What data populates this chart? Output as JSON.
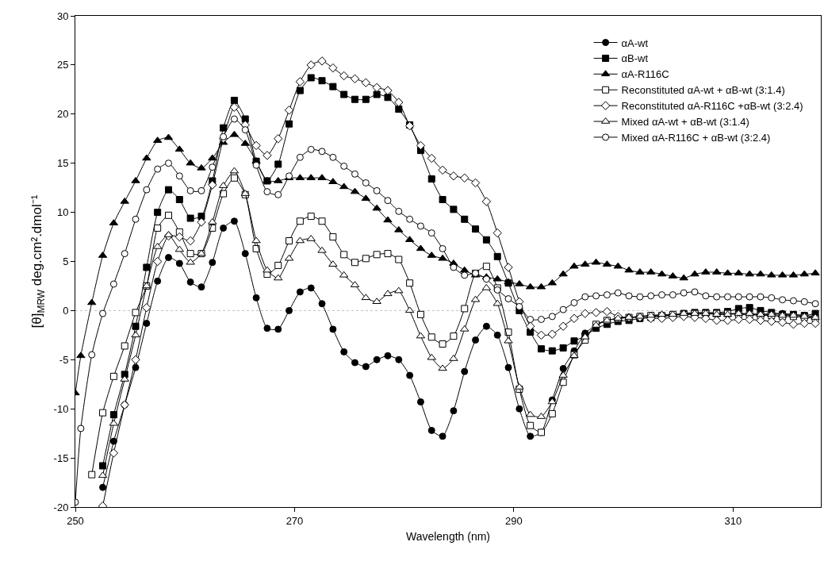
{
  "chart_data": {
    "type": "line",
    "xlabel": "Wavelength (nm)",
    "ylabel": "[θ]$_{MRW}$ deg.cm².dmol⁻¹",
    "x": [
      251.5,
      252.5,
      253.5,
      254.5,
      255.5,
      256.5,
      257.5,
      258.5,
      259.5,
      260.5,
      261.5,
      262.5,
      263.5,
      264.5,
      265.5,
      266.5,
      267.5,
      268.5,
      269.5,
      270.5,
      271.5,
      272.5,
      273.5,
      274.5,
      275.5,
      276.5,
      277.5,
      278.5,
      279.5,
      280.5,
      281.5,
      282.5,
      283.5,
      284.5,
      285.5,
      286.5,
      287.5,
      288.5,
      289.5,
      290.5,
      291.5,
      292.5,
      293.5,
      294.5,
      295.5,
      296.5,
      297.5,
      298.5,
      299.5,
      300.5,
      301.5,
      302.5,
      303.5,
      304.5,
      305.5,
      306.5,
      307.5,
      308.5,
      309.5,
      310.5,
      311.5,
      312.5,
      313.5,
      314.5,
      315.5,
      316.5,
      317.5
    ],
    "series": [
      {
        "name": "αA-wt",
        "color": "#000000",
        "marker": "circle",
        "values": [
          null,
          -18.0,
          -13.3,
          -9.6,
          -5.8,
          -1.3,
          3.0,
          5.4,
          4.8,
          2.9,
          2.4,
          4.9,
          8.4,
          9.1,
          5.8,
          1.3,
          -1.8,
          -1.9,
          0.0,
          1.9,
          2.3,
          0.7,
          -1.9,
          -4.2,
          -5.3,
          -5.7,
          -5.0,
          -4.6,
          -5.0,
          -6.6,
          -9.3,
          -12.2,
          -12.8,
          -10.2,
          -6.2,
          -3.0,
          -1.6,
          -2.5,
          -5.8,
          -10.0,
          -12.8,
          -12.4,
          -9.1,
          -5.9,
          -4.1,
          -2.3,
          -1.5,
          -1.0,
          -0.8,
          -0.7,
          -0.6,
          -0.6,
          -0.5,
          -0.5,
          -0.4,
          -0.4,
          -0.3,
          -0.3,
          -0.3,
          -0.3,
          -0.4,
          -0.4,
          -0.3,
          -0.3,
          -0.4,
          -0.5,
          -0.6
        ]
      },
      {
        "name": "αB-wt",
        "color": "#000000",
        "marker": "square",
        "values": [
          null,
          -15.8,
          -10.6,
          -6.5,
          -1.6,
          4.4,
          10.0,
          12.3,
          11.3,
          9.4,
          9.6,
          13.2,
          18.6,
          21.4,
          19.5,
          15.2,
          13.2,
          14.9,
          19.0,
          22.4,
          23.7,
          23.4,
          22.8,
          22.0,
          21.5,
          21.5,
          22.0,
          21.7,
          20.5,
          18.9,
          16.3,
          13.4,
          11.3,
          10.3,
          9.3,
          8.3,
          7.2,
          5.5,
          2.8,
          0.0,
          -2.2,
          -3.9,
          -4.1,
          -3.8,
          -3.1,
          -2.6,
          -1.8,
          -1.4,
          -1.1,
          -1.0,
          -0.8,
          -0.7,
          -0.6,
          -0.5,
          -0.3,
          -0.2,
          -0.2,
          -0.2,
          -0.1,
          0.2,
          0.3,
          0.0,
          -0.2,
          -0.4,
          -0.4,
          -0.5,
          -0.3
        ]
      },
      {
        "name": "αA-R116C",
        "color": "#000000",
        "marker": "triangle",
        "x": [
          250,
          250.5,
          251.5,
          252.5,
          253.5,
          254.5,
          255.5,
          256.5,
          257.5,
          258.5,
          259.5,
          260.5,
          261.5,
          262.5,
          263.5,
          264.5,
          265.5,
          266.5,
          267.5,
          268.5,
          269.5,
          270.5,
          271.5,
          272.5,
          273.5,
          274.5,
          275.5,
          276.5,
          277.5,
          278.5,
          279.5,
          280.5,
          281.5,
          282.5,
          283.5,
          284.5,
          285.5,
          286.5,
          287.5,
          288.5,
          289.5,
          290.5,
          291.5,
          292.5,
          293.5,
          294.5,
          295.5,
          296.5,
          297.5,
          298.5,
          299.5,
          300.5,
          301.5,
          302.5,
          303.5,
          304.5,
          305.5,
          306.5,
          307.5,
          308.5,
          309.5,
          310.5,
          311.5,
          312.5,
          313.5,
          314.5,
          315.5,
          316.5,
          317.5
        ],
        "values": [
          -8.4,
          -4.6,
          0.8,
          5.6,
          8.9,
          11.1,
          13.2,
          15.5,
          17.3,
          17.6,
          16.4,
          15.0,
          14.5,
          15.5,
          17.1,
          17.9,
          17.0,
          15.2,
          13.2,
          13.2,
          13.5,
          13.5,
          13.5,
          13.5,
          13.1,
          12.6,
          12.1,
          11.4,
          10.4,
          9.2,
          8.2,
          7.2,
          6.3,
          5.6,
          5.3,
          4.8,
          4.1,
          3.6,
          3.4,
          3.2,
          2.9,
          2.7,
          2.4,
          2.4,
          2.8,
          3.7,
          4.5,
          4.7,
          4.9,
          4.7,
          4.5,
          4.1,
          3.9,
          3.9,
          3.7,
          3.5,
          3.3,
          3.7,
          3.9,
          3.9,
          3.8,
          3.8,
          3.7,
          3.7,
          3.6,
          3.6,
          3.6,
          3.7,
          3.8
        ]
      },
      {
        "name": "Reconstituted αA-wt + αB-wt (3:1.4)",
        "color": "#000000",
        "marker": "square",
        "values": [
          -16.7,
          -10.4,
          -6.7,
          -3.6,
          -0.2,
          2.5,
          8.4,
          9.7,
          8.0,
          5.8,
          5.8,
          8.4,
          11.9,
          13.5,
          11.8,
          6.3,
          3.7,
          4.6,
          7.1,
          9.1,
          9.6,
          9.1,
          7.5,
          5.7,
          4.9,
          5.3,
          5.7,
          5.8,
          5.2,
          2.8,
          -0.4,
          -2.7,
          -3.4,
          -2.6,
          0.2,
          3.8,
          4.5,
          2.3,
          -2.2,
          -8.0,
          -11.7,
          -12.4,
          -10.5,
          -7.3,
          -4.5,
          -3.0,
          -1.4,
          -1.0,
          -0.8,
          -0.7,
          -0.6,
          -0.5,
          -0.5,
          -0.4,
          -0.4,
          -0.3,
          -0.3,
          -0.3,
          -0.3,
          -0.4,
          -0.4,
          -0.5,
          -0.5,
          -0.6,
          -0.6,
          -0.7,
          -0.8
        ]
      },
      {
        "name": "Reconstituted αA-R116C +αB-wt (3:2.4)",
        "color": "#000000",
        "marker": "diamond",
        "values": [
          null,
          -19.9,
          -14.5,
          -9.6,
          -5.0,
          0.3,
          5.0,
          7.6,
          7.5,
          7.1,
          9.0,
          12.8,
          17.5,
          20.7,
          18.9,
          16.8,
          15.8,
          17.5,
          20.4,
          23.3,
          25.0,
          25.4,
          24.7,
          23.9,
          23.6,
          23.2,
          22.7,
          22.4,
          21.2,
          18.8,
          16.8,
          15.5,
          14.3,
          13.7,
          13.5,
          13.0,
          11.1,
          7.9,
          4.4,
          0.9,
          -1.6,
          -2.5,
          -2.4,
          -1.6,
          -0.8,
          -0.3,
          -0.2,
          -0.1,
          -0.6,
          -0.7,
          -0.7,
          -0.8,
          -0.8,
          -0.7,
          -0.6,
          -0.7,
          -0.8,
          -1.0,
          -1.0,
          -0.9,
          -0.9,
          -1.0,
          -1.1,
          -1.2,
          -1.4,
          -1.3,
          -1.3
        ]
      },
      {
        "name": "Mixed αA-wt + αB-wt (3:1.4)",
        "color": "#000000",
        "marker": "triangle",
        "values": [
          null,
          -16.8,
          -11.5,
          -7.0,
          -2.5,
          2.5,
          6.5,
          7.7,
          6.2,
          4.9,
          5.8,
          9.0,
          12.7,
          14.2,
          11.9,
          7.1,
          4.1,
          3.3,
          5.3,
          7.1,
          7.3,
          6.1,
          4.7,
          3.6,
          2.6,
          1.3,
          0.9,
          1.7,
          2.0,
          0.0,
          -2.6,
          -4.8,
          -5.9,
          -4.9,
          -1.9,
          1.1,
          2.3,
          0.7,
          -3.1,
          -7.8,
          -10.6,
          -10.8,
          -9.3,
          -6.6,
          -4.6,
          -2.7,
          -1.5,
          -1.0,
          -0.8,
          -0.7,
          -0.6,
          -0.5,
          -0.4,
          -0.4,
          -0.3,
          -0.3,
          -0.3,
          -0.4,
          -0.4,
          -0.3,
          -0.3,
          -0.4,
          -0.4,
          -0.5,
          -0.5,
          -0.6,
          -0.7
        ]
      },
      {
        "name": "Mixed αA-R116C + αB-wt (3:2.4)",
        "color": "#000000",
        "marker": "circle",
        "x": [
          250,
          250.5,
          251.5,
          252.5,
          253.5,
          254.5,
          255.5,
          256.5,
          257.5,
          258.5,
          259.5,
          260.5,
          261.5,
          262.5,
          263.5,
          264.5,
          265.5,
          266.5,
          267.5,
          268.5,
          269.5,
          270.5,
          271.5,
          272.5,
          273.5,
          274.5,
          275.5,
          276.5,
          277.5,
          278.5,
          279.5,
          280.5,
          281.5,
          282.5,
          283.5,
          284.5,
          285.5,
          286.5,
          287.5,
          288.5,
          289.5,
          290.5,
          291.5,
          292.5,
          293.5,
          294.5,
          295.5,
          296.5,
          297.5,
          298.5,
          299.5,
          300.5,
          301.5,
          302.5,
          303.5,
          304.5,
          305.5,
          306.5,
          307.5,
          308.5,
          309.5,
          310.5,
          311.5,
          312.5,
          313.5,
          314.5,
          315.5,
          316.5,
          317.5
        ],
        "values": [
          -19.5,
          -12.0,
          -4.5,
          -0.3,
          2.7,
          5.8,
          9.3,
          12.3,
          14.4,
          15.0,
          13.7,
          12.2,
          12.2,
          14.6,
          17.7,
          19.5,
          18.4,
          14.8,
          12.1,
          11.8,
          13.7,
          15.6,
          16.4,
          16.2,
          15.6,
          14.7,
          13.9,
          13.0,
          12.2,
          11.2,
          10.1,
          9.3,
          8.6,
          7.9,
          6.3,
          4.4,
          3.6,
          3.8,
          3.2,
          2.1,
          1.2,
          0.4,
          -0.9,
          -0.9,
          -0.6,
          0.1,
          0.8,
          1.4,
          1.5,
          1.6,
          1.8,
          1.5,
          1.4,
          1.5,
          1.6,
          1.6,
          1.8,
          1.9,
          1.5,
          1.4,
          1.4,
          1.4,
          1.4,
          1.4,
          1.3,
          1.1,
          1.0,
          0.9,
          0.7
        ]
      }
    ],
    "xlim": [
      250,
      318
    ],
    "xticks": [
      250,
      270,
      290,
      310
    ],
    "ylim": [
      -20,
      30
    ],
    "yticks": [
      -20,
      -15,
      -10,
      -5,
      0,
      5,
      10,
      15,
      20,
      25,
      30
    ],
    "ref_lines": [
      {
        "axis": "y",
        "value": 0,
        "color": "#c0c0c0",
        "line_style": "dotted"
      }
    ],
    "grid": false,
    "legend": "top right",
    "line_style": "solid"
  }
}
